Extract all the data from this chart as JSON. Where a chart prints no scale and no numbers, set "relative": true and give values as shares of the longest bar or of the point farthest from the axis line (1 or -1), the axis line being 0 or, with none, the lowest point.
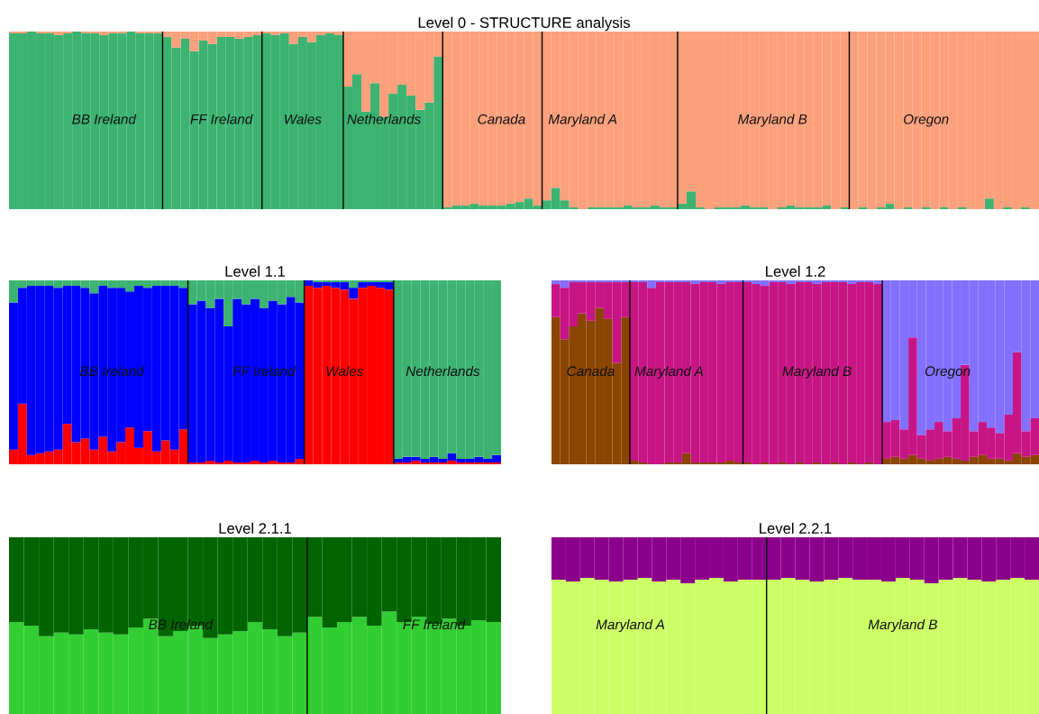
{
  "chart_data": [
    {
      "type": "bar",
      "title": "Level 0 - STRUCTURE analysis",
      "stacked": true,
      "relative": true,
      "tick_labels": false,
      "categories": [
        null,
        null,
        null,
        null,
        null,
        null,
        null,
        null,
        null,
        null,
        "BB Ireland",
        null,
        null,
        null,
        null,
        null,
        null,
        null,
        null,
        null,
        null,
        null,
        null,
        "FF Ireland",
        null,
        null,
        null,
        null,
        null,
        null,
        null,
        null,
        "Wales",
        null,
        null,
        null,
        null,
        null,
        null,
        null,
        null,
        "Netherlands",
        null,
        null,
        null,
        null,
        null,
        null,
        null,
        null,
        null,
        null,
        null,
        null,
        "Canada",
        null,
        null,
        null,
        null,
        null,
        null,
        null,
        null,
        "Maryland A",
        null,
        null,
        null,
        null,
        null,
        null,
        null,
        null,
        null,
        null,
        null,
        null,
        null,
        null,
        null,
        null,
        null,
        null,
        null,
        null,
        "Maryland B",
        null,
        null,
        null,
        null,
        null,
        null,
        null,
        null,
        null,
        null,
        null,
        null,
        null,
        null,
        null,
        null,
        "Oregon",
        null,
        null,
        null,
        null,
        null,
        null,
        null,
        null,
        null,
        null,
        null,
        null
      ],
      "series": [
        {
          "color": "#3cb371",
          "values": [
            0.99,
            0.99,
            1,
            0.99,
            0.99,
            0.98,
            0.99,
            1,
            0.99,
            0.99,
            0.98,
            0.99,
            0.99,
            1,
            0.99,
            0.99,
            0.99,
            0.97,
            0.91,
            0.96,
            0.89,
            0.95,
            0.93,
            0.97,
            0.97,
            0.96,
            0.97,
            0.98,
            0.99,
            0.98,
            0.99,
            0.93,
            0.97,
            0.94,
            0.98,
            0.99,
            0.98,
            0.69,
            0.76,
            0.55,
            0.71,
            0.52,
            0.65,
            0.7,
            0.64,
            0.56,
            0.6,
            0.86,
            0.01,
            0.02,
            0.02,
            0.03,
            0.02,
            0.02,
            0.02,
            0.03,
            0.04,
            0.06,
            0.02,
            0.05,
            0.12,
            0.05,
            0.01,
            0,
            0.01,
            0.01,
            0.01,
            0.01,
            0.02,
            0.01,
            0.01,
            0.02,
            0.01,
            0.01,
            0.03,
            0.1,
            0.01,
            0,
            0.01,
            0.01,
            0.01,
            0.02,
            0.01,
            0.01,
            0,
            0.01,
            0.02,
            0.01,
            0.01,
            0.01,
            0.02,
            0,
            0.01,
            0,
            0.01,
            0,
            0.01,
            0.03,
            0,
            0.01,
            0,
            0.01,
            0,
            0.01,
            0,
            0.01,
            0,
            0,
            0.06,
            0,
            0.01,
            0,
            0.01,
            0
          ]
        },
        {
          "color": "#fda07c",
          "values": [
            0.01,
            0.01,
            0,
            0.01,
            0.01,
            0.02,
            0.01,
            0,
            0.01,
            0.01,
            0.02,
            0.01,
            0.01,
            0,
            0.01,
            0.01,
            0.01,
            0.03,
            0.09,
            0.04,
            0.11,
            0.05,
            0.07,
            0.03,
            0.03,
            0.04,
            0.03,
            0.02,
            0.01,
            0.02,
            0.01,
            0.07,
            0.03,
            0.06,
            0.02,
            0.01,
            0.02,
            0.31,
            0.24,
            0.45,
            0.29,
            0.48,
            0.35,
            0.3,
            0.36,
            0.44,
            0.4,
            0.14,
            0.99,
            0.98,
            0.98,
            0.97,
            0.98,
            0.98,
            0.98,
            0.97,
            0.96,
            0.94,
            0.98,
            0.95,
            0.88,
            0.95,
            0.99,
            1,
            0.99,
            0.99,
            0.99,
            0.99,
            0.98,
            0.99,
            0.99,
            0.98,
            0.99,
            0.99,
            0.97,
            0.9,
            0.99,
            1,
            0.99,
            0.99,
            0.99,
            0.98,
            0.99,
            0.99,
            1,
            0.99,
            0.98,
            0.99,
            0.99,
            0.99,
            0.98,
            1,
            0.99,
            1,
            0.99,
            1,
            0.99,
            0.97,
            1,
            0.99,
            1,
            0.99,
            1,
            0.99,
            1,
            0.99,
            1,
            1,
            0.94,
            1,
            0.99,
            1,
            0.99,
            1
          ]
        }
      ]
    },
    {
      "type": "bar",
      "title": "Level 1.1",
      "stacked": true,
      "relative": true,
      "tick_labels": false,
      "categories": [
        null,
        null,
        null,
        null,
        null,
        null,
        null,
        null,
        null,
        null,
        null,
        "BB Ireland",
        null,
        null,
        null,
        null,
        null,
        null,
        null,
        null,
        null,
        null,
        null,
        null,
        null,
        null,
        null,
        null,
        "FF Ireland",
        null,
        null,
        null,
        null,
        null,
        null,
        null,
        null,
        "Wales",
        null,
        null,
        null,
        null,
        null,
        null,
        null,
        null,
        null,
        null,
        "Netherlands",
        null,
        null,
        null,
        null,
        null,
        null
      ],
      "series": [
        {
          "color": "#ff0000",
          "values": [
            0.08,
            0.33,
            0.05,
            0.06,
            0.07,
            0.08,
            0.22,
            0.12,
            0.14,
            0.08,
            0.15,
            0.07,
            0.12,
            0.2,
            0.09,
            0.18,
            0.07,
            0.13,
            0.08,
            0.19,
            0.01,
            0.01,
            0.02,
            0.01,
            0.02,
            0.01,
            0.01,
            0.02,
            0.01,
            0.02,
            0.01,
            0.01,
            0.03,
            0.97,
            0.96,
            0.97,
            0.96,
            0.95,
            0.9,
            0.96,
            0.97,
            0.96,
            0.95,
            0.01,
            0.01,
            0.02,
            0.01,
            0.01,
            0.01,
            0.02,
            0.01,
            0.01,
            0.01,
            0.01,
            0.01
          ]
        },
        {
          "color": "#0000ff",
          "values": [
            0.8,
            0.63,
            0.92,
            0.91,
            0.9,
            0.88,
            0.75,
            0.85,
            0.82,
            0.85,
            0.82,
            0.89,
            0.84,
            0.74,
            0.88,
            0.78,
            0.9,
            0.84,
            0.89,
            0.77,
            0.86,
            0.88,
            0.83,
            0.89,
            0.73,
            0.89,
            0.86,
            0.88,
            0.84,
            0.87,
            0.86,
            0.9,
            0.85,
            0.03,
            0.03,
            0.02,
            0.03,
            0.04,
            0.06,
            0.03,
            0.02,
            0.03,
            0.04,
            0.02,
            0.03,
            0.02,
            0.02,
            0.03,
            0.02,
            0.04,
            0.02,
            0.02,
            0.03,
            0.02,
            0.04
          ]
        },
        {
          "color": "#3cb371",
          "values": [
            0.12,
            0.04,
            0.03,
            0.03,
            0.03,
            0.04,
            0.03,
            0.03,
            0.04,
            0.07,
            0.03,
            0.04,
            0.04,
            0.06,
            0.03,
            0.04,
            0.03,
            0.03,
            0.03,
            0.04,
            0.13,
            0.11,
            0.15,
            0.1,
            0.25,
            0.1,
            0.13,
            0.1,
            0.15,
            0.11,
            0.13,
            0.09,
            0.12,
            0,
            0.01,
            0.01,
            0.01,
            0.01,
            0.04,
            0.01,
            0.01,
            0.01,
            0.01,
            0.97,
            0.96,
            0.96,
            0.97,
            0.96,
            0.97,
            0.94,
            0.97,
            0.97,
            0.96,
            0.97,
            0.95
          ]
        }
      ]
    },
    {
      "type": "bar",
      "title": "Level 1.2",
      "stacked": true,
      "relative": true,
      "tick_labels": false,
      "categories": [
        null,
        null,
        null,
        null,
        "Canada",
        null,
        null,
        null,
        null,
        null,
        null,
        null,
        null,
        "Maryland A",
        null,
        null,
        null,
        null,
        null,
        null,
        null,
        null,
        null,
        null,
        null,
        null,
        null,
        null,
        null,
        null,
        "Maryland B",
        null,
        null,
        null,
        null,
        null,
        null,
        null,
        null,
        null,
        null,
        null,
        null,
        null,
        null,
        "Oregon",
        null,
        null,
        null,
        null,
        null,
        null,
        null,
        null,
        null,
        null
      ],
      "series": [
        {
          "color": "#8b4500",
          "values": [
            0.8,
            0.68,
            0.75,
            0.82,
            0.78,
            0.85,
            0.79,
            0.55,
            0.8,
            0.02,
            0.01,
            0,
            0,
            0.01,
            0.01,
            0.06,
            0.01,
            0.01,
            0.01,
            0.01,
            0.02,
            0.01,
            0.01,
            0,
            0.01,
            0,
            0.01,
            0,
            0.01,
            0,
            0.01,
            0,
            0.01,
            0,
            0.01,
            0,
            0.01,
            0,
            0.03,
            0.04,
            0.03,
            0.05,
            0.03,
            0.02,
            0.03,
            0.04,
            0.03,
            0.02,
            0.04,
            0.05,
            0.03,
            0.03,
            0.02,
            0.06,
            0.04,
            0.05
          ]
        },
        {
          "color": "#c71585",
          "values": [
            0.18,
            0.28,
            0.24,
            0.17,
            0.21,
            0.14,
            0.2,
            0.44,
            0.19,
            0.97,
            0.98,
            0.96,
            0.99,
            0.98,
            0.98,
            0.93,
            0.97,
            0.98,
            0.98,
            0.97,
            0.97,
            0.98,
            0.98,
            0.98,
            0.96,
            0.99,
            0.98,
            0.98,
            0.98,
            0.99,
            0.97,
            0.99,
            0.98,
            0.99,
            0.97,
            0.99,
            0.98,
            0.98,
            0.2,
            0.2,
            0.16,
            0.64,
            0.13,
            0.17,
            0.2,
            0.14,
            0.22,
            0.52,
            0.14,
            0.18,
            0.17,
            0.14,
            0.25,
            0.55,
            0.14,
            0.2
          ]
        },
        {
          "color": "#8470ff",
          "values": [
            0.02,
            0.04,
            0.01,
            0.01,
            0.01,
            0.01,
            0.01,
            0.01,
            0.01,
            0.01,
            0.01,
            0.04,
            0.01,
            0.01,
            0.01,
            0.01,
            0.02,
            0.01,
            0.01,
            0.02,
            0.01,
            0.01,
            0.01,
            0.02,
            0.03,
            0.01,
            0.01,
            0.02,
            0.01,
            0.01,
            0.02,
            0.01,
            0.01,
            0.01,
            0.02,
            0.01,
            0.01,
            0.02,
            0.77,
            0.76,
            0.81,
            0.31,
            0.84,
            0.81,
            0.77,
            0.82,
            0.75,
            0.46,
            0.82,
            0.77,
            0.8,
            0.83,
            0.73,
            0.39,
            0.82,
            0.75
          ]
        }
      ]
    },
    {
      "type": "bar",
      "title": "Level 2.1.1",
      "stacked": true,
      "relative": true,
      "tick_labels": false,
      "categories": [
        null,
        null,
        null,
        null,
        null,
        null,
        null,
        null,
        null,
        null,
        null,
        "BB Ireland",
        null,
        null,
        null,
        null,
        null,
        null,
        null,
        null,
        null,
        null,
        null,
        null,
        null,
        null,
        null,
        null,
        "FF Ireland",
        null,
        null,
        null,
        null
      ],
      "series": [
        {
          "color": "#32cd32",
          "values": [
            0.52,
            0.5,
            0.44,
            0.46,
            0.45,
            0.48,
            0.46,
            0.45,
            0.49,
            0.54,
            0.44,
            0.47,
            0.5,
            0.43,
            0.45,
            0.47,
            0.52,
            0.48,
            0.44,
            0.46,
            0.55,
            0.49,
            0.52,
            0.55,
            0.5,
            0.58,
            0.52,
            0.55,
            0.51,
            0.54,
            0.5,
            0.53,
            0.52
          ]
        },
        {
          "color": "#006400",
          "values": [
            0.48,
            0.5,
            0.56,
            0.54,
            0.55,
            0.52,
            0.54,
            0.55,
            0.51,
            0.46,
            0.56,
            0.53,
            0.5,
            0.57,
            0.55,
            0.53,
            0.48,
            0.52,
            0.56,
            0.54,
            0.45,
            0.51,
            0.48,
            0.45,
            0.5,
            0.42,
            0.48,
            0.45,
            0.49,
            0.46,
            0.5,
            0.47,
            0.48
          ]
        }
      ]
    },
    {
      "type": "bar",
      "title": "Level 2.2.1",
      "stacked": true,
      "relative": true,
      "tick_labels": false,
      "categories": [
        null,
        null,
        null,
        null,
        null,
        "Maryland A",
        null,
        null,
        null,
        null,
        null,
        null,
        null,
        null,
        null,
        null,
        null,
        null,
        null,
        null,
        null,
        null,
        null,
        null,
        "Maryland B",
        null,
        null,
        null,
        null,
        null,
        null,
        null,
        null,
        null
      ],
      "series": [
        {
          "color": "#ccff66",
          "values": [
            0.76,
            0.75,
            0.77,
            0.76,
            0.75,
            0.76,
            0.77,
            0.75,
            0.76,
            0.74,
            0.76,
            0.77,
            0.75,
            0.76,
            0.76,
            0.76,
            0.77,
            0.76,
            0.75,
            0.76,
            0.77,
            0.76,
            0.76,
            0.75,
            0.77,
            0.76,
            0.74,
            0.76,
            0.77,
            0.76,
            0.75,
            0.76,
            0.77,
            0.76
          ]
        },
        {
          "color": "#8b008b",
          "values": [
            0.24,
            0.25,
            0.23,
            0.24,
            0.25,
            0.24,
            0.23,
            0.25,
            0.24,
            0.26,
            0.24,
            0.23,
            0.25,
            0.24,
            0.24,
            0.24,
            0.23,
            0.24,
            0.25,
            0.24,
            0.23,
            0.24,
            0.24,
            0.25,
            0.23,
            0.24,
            0.26,
            0.24,
            0.23,
            0.24,
            0.25,
            0.24,
            0.23,
            0.24
          ]
        }
      ]
    }
  ]
}
